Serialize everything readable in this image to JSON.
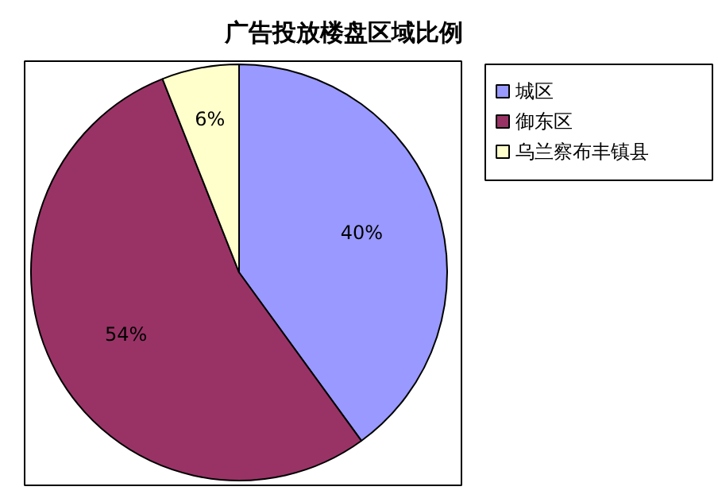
{
  "chart_data": {
    "type": "pie",
    "title": "广告投放楼盘区域比例",
    "categories": [
      "城区",
      "御东区",
      "乌兰察布丰镇县"
    ],
    "values": [
      40,
      54,
      6
    ],
    "colors": [
      "#9999ff",
      "#993366",
      "#ffffcc"
    ],
    "value_labels": [
      "40%",
      "54%",
      "6%"
    ],
    "legend": "right"
  }
}
